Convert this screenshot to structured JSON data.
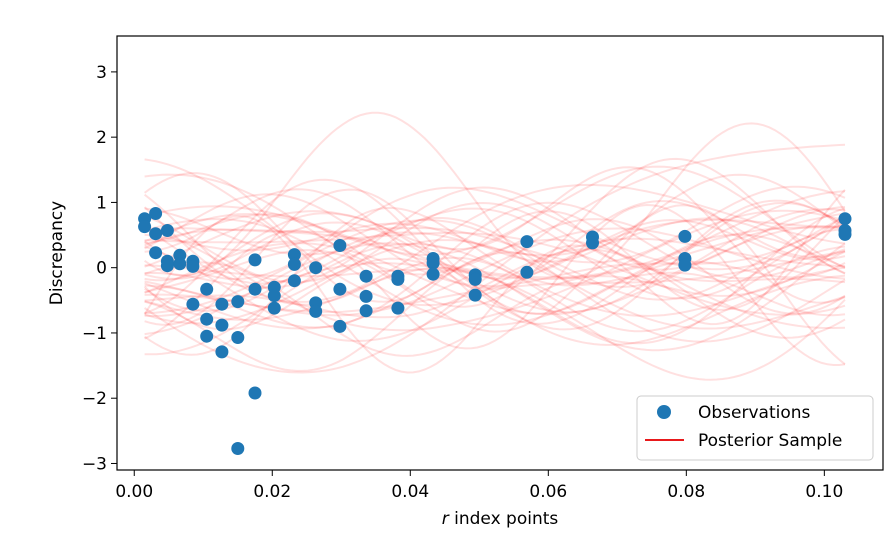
{
  "chart_data": {
    "type": "scatter",
    "xlabel": {
      "italic": "r",
      "rest": " index points"
    },
    "ylabel": "Discrepancy",
    "xlim": [
      -0.0025,
      0.1085
    ],
    "ylim": [
      -3.1,
      3.55
    ],
    "xticks": [
      0.0,
      0.02,
      0.04,
      0.06,
      0.08,
      0.1
    ],
    "xtick_labels": [
      "0.00",
      "0.02",
      "0.04",
      "0.06",
      "0.08",
      "0.10"
    ],
    "yticks": [
      -3,
      -2,
      -1,
      0,
      1,
      2,
      3
    ],
    "ytick_labels": [
      "−3",
      "−2",
      "−1",
      "0",
      "1",
      "2",
      "3"
    ],
    "grid": false,
    "legend": {
      "position": "lower right",
      "entries": [
        {
          "label": "Observations",
          "marker": "circle",
          "color": "#1f77b4"
        },
        {
          "label": "Posterior Sample",
          "marker": "line",
          "color": "#e8191b"
        }
      ]
    },
    "series": [
      {
        "name": "Observations",
        "kind": "scatter",
        "color": "#1f77b4",
        "points": [
          {
            "x": 0.0015,
            "y": 0.75
          },
          {
            "x": 0.0015,
            "y": 0.63
          },
          {
            "x": 0.0031,
            "y": 0.83
          },
          {
            "x": 0.0031,
            "y": 0.52
          },
          {
            "x": 0.0031,
            "y": 0.23
          },
          {
            "x": 0.0048,
            "y": 0.57
          },
          {
            "x": 0.0048,
            "y": 0.1
          },
          {
            "x": 0.0048,
            "y": 0.03
          },
          {
            "x": 0.0066,
            "y": 0.19
          },
          {
            "x": 0.0066,
            "y": 0.06
          },
          {
            "x": 0.0085,
            "y": 0.1
          },
          {
            "x": 0.0085,
            "y": 0.02
          },
          {
            "x": 0.0085,
            "y": -0.56
          },
          {
            "x": 0.0105,
            "y": -0.33
          },
          {
            "x": 0.0105,
            "y": -0.79
          },
          {
            "x": 0.0105,
            "y": -1.05
          },
          {
            "x": 0.0127,
            "y": -0.56
          },
          {
            "x": 0.0127,
            "y": -0.88
          },
          {
            "x": 0.0127,
            "y": -1.29
          },
          {
            "x": 0.015,
            "y": -0.52
          },
          {
            "x": 0.015,
            "y": -1.07
          },
          {
            "x": 0.015,
            "y": -2.77
          },
          {
            "x": 0.0175,
            "y": 0.12
          },
          {
            "x": 0.0175,
            "y": -0.33
          },
          {
            "x": 0.0175,
            "y": -1.92
          },
          {
            "x": 0.0203,
            "y": -0.3
          },
          {
            "x": 0.0203,
            "y": -0.43
          },
          {
            "x": 0.0203,
            "y": -0.62
          },
          {
            "x": 0.0232,
            "y": 0.2
          },
          {
            "x": 0.0232,
            "y": 0.05
          },
          {
            "x": 0.0232,
            "y": -0.2
          },
          {
            "x": 0.0263,
            "y": 0.0
          },
          {
            "x": 0.0263,
            "y": -0.54
          },
          {
            "x": 0.0263,
            "y": -0.67
          },
          {
            "x": 0.0298,
            "y": 0.34
          },
          {
            "x": 0.0298,
            "y": -0.33
          },
          {
            "x": 0.0298,
            "y": -0.9
          },
          {
            "x": 0.0336,
            "y": -0.13
          },
          {
            "x": 0.0336,
            "y": -0.44
          },
          {
            "x": 0.0336,
            "y": -0.66
          },
          {
            "x": 0.0382,
            "y": -0.13
          },
          {
            "x": 0.0382,
            "y": -0.18
          },
          {
            "x": 0.0382,
            "y": -0.62
          },
          {
            "x": 0.0433,
            "y": 0.14
          },
          {
            "x": 0.0433,
            "y": 0.07
          },
          {
            "x": 0.0433,
            "y": -0.1
          },
          {
            "x": 0.0494,
            "y": -0.11
          },
          {
            "x": 0.0494,
            "y": -0.18
          },
          {
            "x": 0.0494,
            "y": -0.42
          },
          {
            "x": 0.0569,
            "y": 0.4
          },
          {
            "x": 0.0569,
            "y": -0.07
          },
          {
            "x": 0.0664,
            "y": 0.47
          },
          {
            "x": 0.0664,
            "y": 0.38
          },
          {
            "x": 0.0798,
            "y": 0.48
          },
          {
            "x": 0.0798,
            "y": 0.14
          },
          {
            "x": 0.0798,
            "y": 0.04
          },
          {
            "x": 0.103,
            "y": 0.75
          },
          {
            "x": 0.103,
            "y": 0.57
          },
          {
            "x": 0.103,
            "y": 0.51
          }
        ]
      }
    ],
    "posterior_samples": {
      "name": "Posterior Sample",
      "kind": "line",
      "color": "#ff0000",
      "alpha": 0.12,
      "count": 50,
      "x_range": [
        0.0015,
        0.103
      ],
      "approx_mean_path": [
        [
          0.0015,
          0.1
        ],
        [
          0.01,
          0.05
        ],
        [
          0.02,
          0.0
        ],
        [
          0.03,
          -0.05
        ],
        [
          0.04,
          -0.05
        ],
        [
          0.05,
          0.0
        ],
        [
          0.06,
          0.05
        ],
        [
          0.07,
          0.1
        ],
        [
          0.08,
          0.15
        ],
        [
          0.09,
          0.2
        ],
        [
          0.103,
          0.25
        ]
      ],
      "approx_spread": 1.1
    }
  }
}
